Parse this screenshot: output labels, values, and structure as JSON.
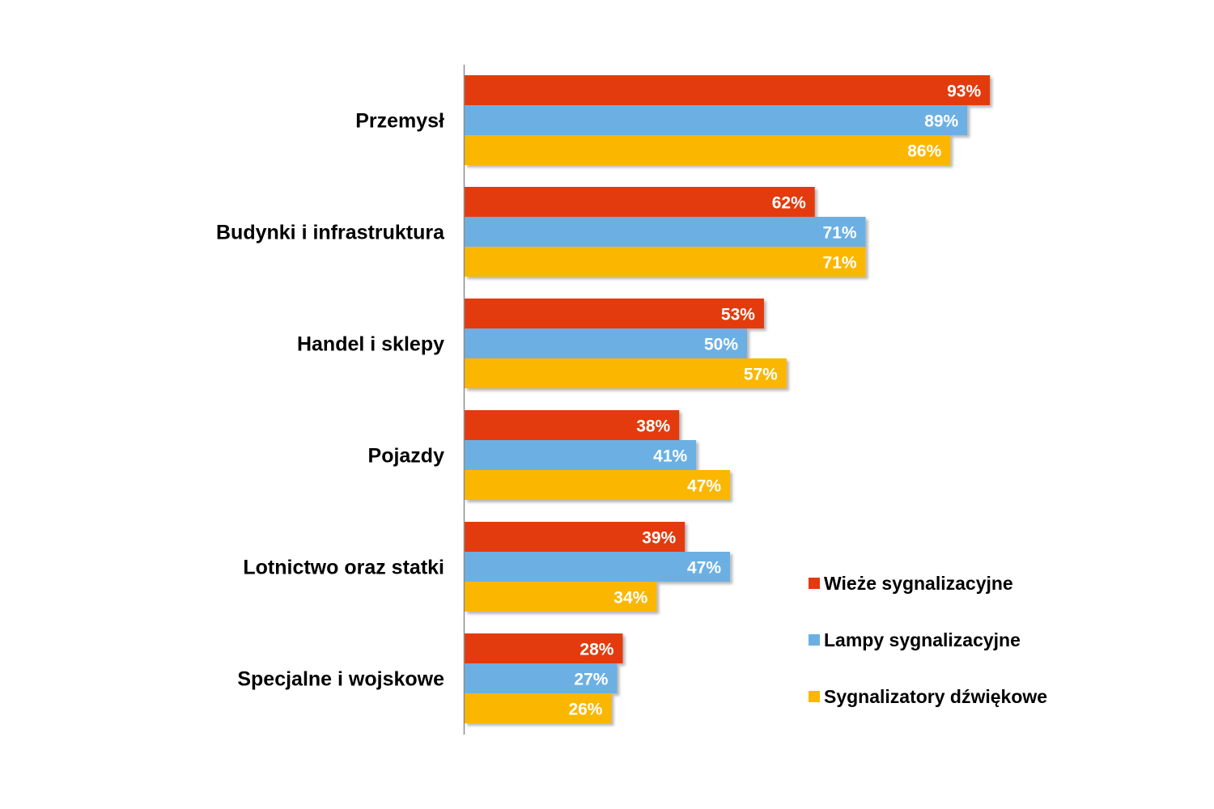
{
  "chart_data": {
    "type": "bar",
    "orientation": "horizontal",
    "categories": [
      "Przemysł",
      "Budynki i infrastruktura",
      "Handel i sklepy",
      "Pojazdy",
      "Lotnictwo oraz statki",
      "Specjalne i wojskowe"
    ],
    "series": [
      {
        "name": "Wieże sygnalizacyjne",
        "color": "#e33a10",
        "values": [
          93,
          62,
          53,
          38,
          39,
          28
        ]
      },
      {
        "name": "Lampy sygnalizacyjne",
        "color": "#6cb0e3",
        "values": [
          89,
          71,
          50,
          41,
          47,
          27
        ]
      },
      {
        "name": "Sygnalizatory dźwiękowe",
        "color": "#fbb700",
        "values": [
          86,
          71,
          57,
          47,
          34,
          26
        ]
      }
    ],
    "value_suffix": "%",
    "xlim": [
      0,
      100
    ],
    "grid": false,
    "legend_position": "bottom-right",
    "title": "",
    "xlabel": "",
    "ylabel": ""
  }
}
